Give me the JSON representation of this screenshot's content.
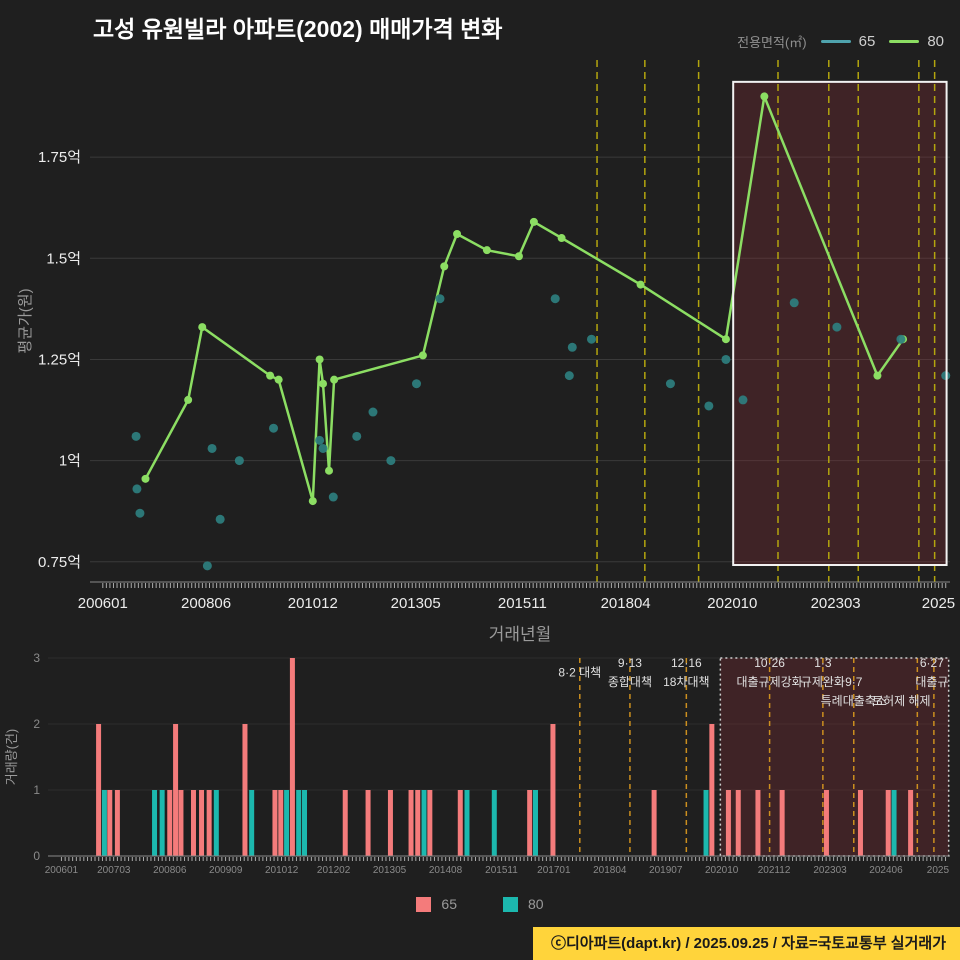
{
  "header": {
    "title": "고성 유원빌라 아파트(2002) 매매가격 변화"
  },
  "area_legend": {
    "label": "전용면적(㎡)",
    "items": [
      {
        "label": "65",
        "color": "#4FA3AD"
      },
      {
        "label": "80",
        "color": "#8CDE63"
      }
    ]
  },
  "size_legend": {
    "items": [
      {
        "label": "65",
        "color": "#F47B7B"
      },
      {
        "label": "80",
        "color": "#1CB8AE"
      }
    ]
  },
  "footer": {
    "text": "ⓒ디아파트(dapt.kr) / 2025.09.25 / 자료=국토교통부 실거래가",
    "bg": "#FFD43B",
    "fg": "#1A1A1A"
  },
  "colors": {
    "background": "#1F1F1F",
    "grid": "#3A3A3A",
    "grid_faint": "#2C2C2C",
    "policy_line_top": "#B3A50E",
    "policy_line_bottom": "#CC8F1F",
    "highlight_fill": "#8C2F38",
    "highlight_border": "#F2F2F2",
    "highlight_border_bottom": "#CFCFCF",
    "axis_text": "#ECECEC",
    "tick_text_small": "#8A8A8A",
    "muted_text": "#9A9A9A",
    "annotation_text": "#E0E0E0",
    "axis_line": "#888888",
    "minor_tick": "#ABABAB"
  },
  "chart_data": [
    {
      "type": "line",
      "xlabel": "거래년월",
      "ylabel": "평균가(원)",
      "xlim": [
        2005.7,
        2025.85
      ],
      "ylim": [
        0.7,
        1.99
      ],
      "x_ticks": [
        {
          "t": 2006.0,
          "label": "200601"
        },
        {
          "t": 2008.42,
          "label": "200806"
        },
        {
          "t": 2010.92,
          "label": "201012"
        },
        {
          "t": 2013.33,
          "label": "201305"
        },
        {
          "t": 2015.83,
          "label": "201511"
        },
        {
          "t": 2018.25,
          "label": "201804"
        },
        {
          "t": 2020.75,
          "label": "202010"
        },
        {
          "t": 2023.17,
          "label": "202303"
        },
        {
          "t": 2025.58,
          "label": "2025"
        }
      ],
      "y_ticks": [
        {
          "v": 0.75,
          "label": "0.75억"
        },
        {
          "v": 1.0,
          "label": "1억"
        },
        {
          "v": 1.25,
          "label": "1.25억"
        },
        {
          "v": 1.5,
          "label": "1.5억"
        },
        {
          "v": 1.75,
          "label": "1.75억"
        }
      ],
      "series": [
        {
          "name": "80",
          "type": "line",
          "color": "#8CDE63",
          "unit": "억",
          "points": [
            [
              2007.0,
              0.955
            ],
            [
              2008.0,
              1.15
            ],
            [
              2008.33,
              1.33
            ],
            [
              2009.92,
              1.21
            ],
            [
              2010.12,
              1.2
            ],
            [
              2010.92,
              0.9
            ],
            [
              2011.08,
              1.25
            ],
            [
              2011.16,
              1.19
            ],
            [
              2011.3,
              0.975
            ],
            [
              2011.42,
              1.2
            ],
            [
              2013.5,
              1.26
            ],
            [
              2014.0,
              1.48
            ],
            [
              2014.3,
              1.56
            ],
            [
              2015.0,
              1.52
            ],
            [
              2015.75,
              1.505
            ],
            [
              2016.1,
              1.59
            ],
            [
              2016.75,
              1.55
            ],
            [
              2018.6,
              1.435
            ],
            [
              2020.6,
              1.3
            ],
            [
              2021.5,
              1.9
            ],
            [
              2024.15,
              1.21
            ],
            [
              2024.75,
              1.3
            ]
          ]
        },
        {
          "name": "65",
          "type": "scatter",
          "color": "#2E7F7F",
          "unit": "억",
          "points": [
            [
              2006.78,
              1.06
            ],
            [
              2006.8,
              0.93
            ],
            [
              2006.87,
              0.87
            ],
            [
              2008.45,
              0.74
            ],
            [
              2008.56,
              1.03
            ],
            [
              2008.75,
              0.855
            ],
            [
              2009.2,
              1.0
            ],
            [
              2010.0,
              1.08
            ],
            [
              2011.08,
              1.05
            ],
            [
              2011.16,
              1.03
            ],
            [
              2011.4,
              0.91
            ],
            [
              2011.95,
              1.06
            ],
            [
              2012.33,
              1.12
            ],
            [
              2012.75,
              1.0
            ],
            [
              2013.35,
              1.19
            ],
            [
              2013.9,
              1.4
            ],
            [
              2016.6,
              1.4
            ],
            [
              2016.93,
              1.21
            ],
            [
              2017.0,
              1.28
            ],
            [
              2017.45,
              1.3
            ],
            [
              2019.3,
              1.19
            ],
            [
              2020.2,
              1.135
            ],
            [
              2020.6,
              1.25
            ],
            [
              2021.0,
              1.15
            ],
            [
              2022.2,
              1.39
            ],
            [
              2023.2,
              1.33
            ],
            [
              2024.7,
              1.3
            ],
            [
              2025.75,
              1.21
            ]
          ]
        }
      ],
      "policy_lines": [
        2017.58,
        2018.7,
        2019.96,
        2021.82,
        2023.01,
        2023.7,
        2025.12,
        2025.49
      ],
      "highlight": {
        "t_start": 2020.77,
        "t_end": 2025.77,
        "v_min": 0.742,
        "v_max": 1.936
      }
    },
    {
      "type": "bar",
      "ylabel": "거래량(건)",
      "xlim": [
        2005.7,
        2025.85
      ],
      "ylim": [
        0,
        3
      ],
      "y_ticks": [
        {
          "v": 0,
          "label": "0"
        },
        {
          "v": 1,
          "label": "1"
        },
        {
          "v": 2,
          "label": "2"
        },
        {
          "v": 3,
          "label": "3"
        }
      ],
      "x_ticks": [
        {
          "t": 2006.0,
          "label": "200601"
        },
        {
          "t": 2007.17,
          "label": "200703"
        },
        {
          "t": 2008.42,
          "label": "200806"
        },
        {
          "t": 2009.67,
          "label": "200909"
        },
        {
          "t": 2010.92,
          "label": "201012"
        },
        {
          "t": 2012.08,
          "label": "201202"
        },
        {
          "t": 2013.33,
          "label": "201305"
        },
        {
          "t": 2014.58,
          "label": "201408"
        },
        {
          "t": 2015.83,
          "label": "201511"
        },
        {
          "t": 2017.0,
          "label": "201701"
        },
        {
          "t": 2018.25,
          "label": "201804"
        },
        {
          "t": 2019.5,
          "label": "201907"
        },
        {
          "t": 2020.75,
          "label": "202010"
        },
        {
          "t": 2021.92,
          "label": "202112"
        },
        {
          "t": 2023.17,
          "label": "202303"
        },
        {
          "t": 2024.42,
          "label": "202406"
        },
        {
          "t": 2025.58,
          "label": "2025"
        }
      ],
      "series_colors": {
        "65": "#F47B7B",
        "80": "#1CB8AE"
      },
      "bars": [
        {
          "t": 2006.83,
          "size": "65",
          "count": 2
        },
        {
          "t": 2006.96,
          "size": "80",
          "count": 1
        },
        {
          "t": 2007.08,
          "size": "65",
          "count": 1
        },
        {
          "t": 2007.25,
          "size": "65",
          "count": 1
        },
        {
          "t": 2008.08,
          "size": "80",
          "count": 1
        },
        {
          "t": 2008.25,
          "size": "80",
          "count": 1
        },
        {
          "t": 2008.42,
          "size": "65",
          "count": 1
        },
        {
          "t": 2008.55,
          "size": "65",
          "count": 2
        },
        {
          "t": 2008.67,
          "size": "65",
          "count": 1
        },
        {
          "t": 2008.95,
          "size": "65",
          "count": 1
        },
        {
          "t": 2009.13,
          "size": "65",
          "count": 1
        },
        {
          "t": 2009.3,
          "size": "65",
          "count": 1
        },
        {
          "t": 2009.46,
          "size": "80",
          "count": 1
        },
        {
          "t": 2010.1,
          "size": "65",
          "count": 2
        },
        {
          "t": 2010.25,
          "size": "80",
          "count": 1
        },
        {
          "t": 2010.77,
          "size": "65",
          "count": 1
        },
        {
          "t": 2010.9,
          "size": "65",
          "count": 1
        },
        {
          "t": 2011.03,
          "size": "80",
          "count": 1
        },
        {
          "t": 2011.16,
          "size": "65",
          "count": 3
        },
        {
          "t": 2011.3,
          "size": "80",
          "count": 1
        },
        {
          "t": 2011.43,
          "size": "80",
          "count": 1
        },
        {
          "t": 2012.34,
          "size": "65",
          "count": 1
        },
        {
          "t": 2012.85,
          "size": "65",
          "count": 1
        },
        {
          "t": 2013.35,
          "size": "65",
          "count": 1
        },
        {
          "t": 2013.81,
          "size": "65",
          "count": 1
        },
        {
          "t": 2013.96,
          "size": "65",
          "count": 1
        },
        {
          "t": 2014.1,
          "size": "80",
          "count": 1
        },
        {
          "t": 2014.23,
          "size": "65",
          "count": 1
        },
        {
          "t": 2014.91,
          "size": "65",
          "count": 1
        },
        {
          "t": 2015.06,
          "size": "80",
          "count": 1
        },
        {
          "t": 2015.67,
          "size": "80",
          "count": 1
        },
        {
          "t": 2016.46,
          "size": "65",
          "count": 1
        },
        {
          "t": 2016.59,
          "size": "80",
          "count": 1
        },
        {
          "t": 2016.98,
          "size": "65",
          "count": 2
        },
        {
          "t": 2019.24,
          "size": "65",
          "count": 1
        },
        {
          "t": 2020.4,
          "size": "80",
          "count": 1
        },
        {
          "t": 2020.53,
          "size": "65",
          "count": 2
        },
        {
          "t": 2020.9,
          "size": "65",
          "count": 1
        },
        {
          "t": 2021.12,
          "size": "65",
          "count": 1
        },
        {
          "t": 2021.56,
          "size": "65",
          "count": 1
        },
        {
          "t": 2022.1,
          "size": "65",
          "count": 1
        },
        {
          "t": 2023.09,
          "size": "65",
          "count": 1
        },
        {
          "t": 2023.85,
          "size": "65",
          "count": 1
        },
        {
          "t": 2024.47,
          "size": "65",
          "count": 1
        },
        {
          "t": 2024.6,
          "size": "80",
          "count": 1
        },
        {
          "t": 2024.97,
          "size": "65",
          "count": 1
        }
      ],
      "policy_lines": [
        2017.58,
        2018.7,
        2019.96,
        2021.82,
        2023.01,
        2023.7,
        2025.12,
        2025.49
      ],
      "annotations": [
        {
          "t": 2017.58,
          "lines": [
            "8·2 대책"
          ],
          "row": 0.5
        },
        {
          "t": 2018.7,
          "lines": [
            "9·13",
            "종합대책"
          ],
          "row": 0
        },
        {
          "t": 2019.96,
          "lines": [
            "12·16",
            "18차대책"
          ],
          "row": 0
        },
        {
          "t": 2021.82,
          "lines": [
            "10·26",
            "대출규제강화"
          ],
          "row": 0
        },
        {
          "t": 2023.01,
          "lines": [
            "1·3",
            "규제완화"
          ],
          "row": 0
        },
        {
          "t": 2023.7,
          "lines": [
            "9·7",
            "특례대출축소"
          ],
          "row": 1
        },
        {
          "t": 2025.12,
          "lines": [
            "토허제 해제"
          ],
          "row": 2,
          "dx": -16
        },
        {
          "t": 2025.49,
          "lines": [
            "6·27",
            "대출규"
          ],
          "row": 0,
          "dx": -2
        }
      ],
      "highlight": {
        "t_start": 2020.72,
        "t_end": 2025.82
      }
    }
  ]
}
